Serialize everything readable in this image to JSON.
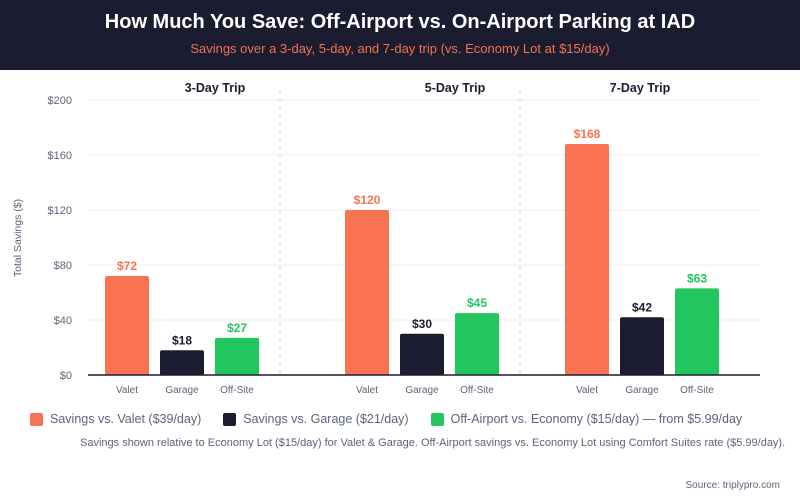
{
  "header": {
    "title": "How Much You Save: Off-Airport vs. On-Airport Parking at IAD",
    "subtitle": "Savings over a 3-day, 5-day, and 7-day trip (vs. Economy Lot at $15/day)"
  },
  "chart_data": {
    "type": "bar",
    "ylabel": "Total Savings ($)",
    "ylim": [
      0,
      200
    ],
    "yticks": [
      "$0",
      "$40",
      "$80",
      "$120",
      "$160",
      "$200"
    ],
    "ytick_values": [
      0,
      40,
      80,
      120,
      160,
      200
    ],
    "grid": true,
    "groups": [
      {
        "title": "3-Day Trip",
        "categories": [
          "Valet",
          "Garage",
          "Off-Site"
        ],
        "values": [
          72,
          18,
          27
        ],
        "labels": [
          "$72",
          "$18",
          "$27"
        ]
      },
      {
        "title": "5-Day Trip",
        "categories": [
          "Valet",
          "Garage",
          "Off-Site"
        ],
        "values": [
          120,
          30,
          45
        ],
        "labels": [
          "$120",
          "$30",
          "$45"
        ]
      },
      {
        "title": "7-Day Trip",
        "categories": [
          "Valet",
          "Garage",
          "Off-Site"
        ],
        "values": [
          168,
          42,
          63
        ],
        "labels": [
          "$168",
          "$42",
          "$63"
        ]
      }
    ],
    "colors": [
      "#f97352",
      "#1c1c30",
      "#22c55e"
    ],
    "legend_position": "bottom"
  },
  "legend": [
    {
      "label": "Savings vs. Valet ($39/day)",
      "color": "#f97352"
    },
    {
      "label": "Savings vs. Garage ($21/day)",
      "color": "#1c1c30"
    },
    {
      "label": "Off-Airport vs. Economy ($15/day) — from $5.99/day",
      "color": "#22c55e"
    }
  ],
  "note": "Savings shown relative to Economy Lot ($15/day) for Valet & Garage. Off-Airport savings vs. Economy Lot using Comfort Suites rate ($5.99/day).",
  "source": "Source: triplypro.com"
}
